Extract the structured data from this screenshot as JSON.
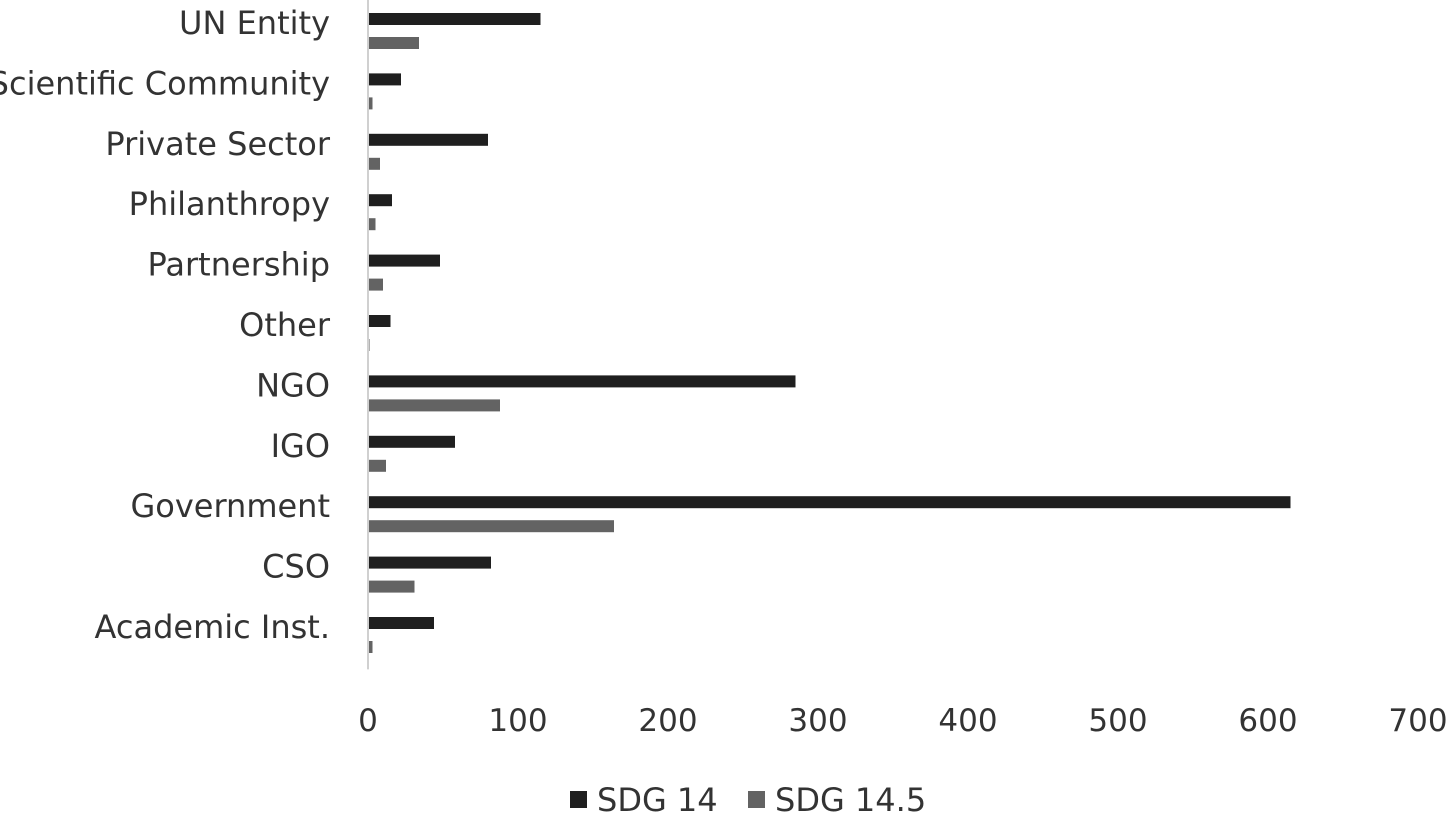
{
  "chart_data": {
    "type": "bar",
    "orientation": "horizontal",
    "categories": [
      "UN Entity",
      "Scientific Community",
      "Private Sector",
      "Philanthropy",
      "Partnership",
      "Other",
      "NGO",
      "IGO",
      "Government",
      "CSO",
      "Academic Inst."
    ],
    "series": [
      {
        "name": "SDG 14",
        "color": "#1f1f1f",
        "values": [
          115,
          22,
          80,
          16,
          48,
          15,
          285,
          58,
          615,
          82,
          44
        ]
      },
      {
        "name": "SDG 14.5",
        "color": "#636363",
        "values": [
          34,
          3,
          8,
          5,
          10,
          1,
          88,
          12,
          164,
          31,
          3
        ]
      }
    ],
    "xlim": [
      0,
      700
    ],
    "xticks": [
      "0",
      "100",
      "200",
      "300",
      "400",
      "500",
      "600",
      "700"
    ],
    "grid": false,
    "legend_position": "bottom"
  }
}
